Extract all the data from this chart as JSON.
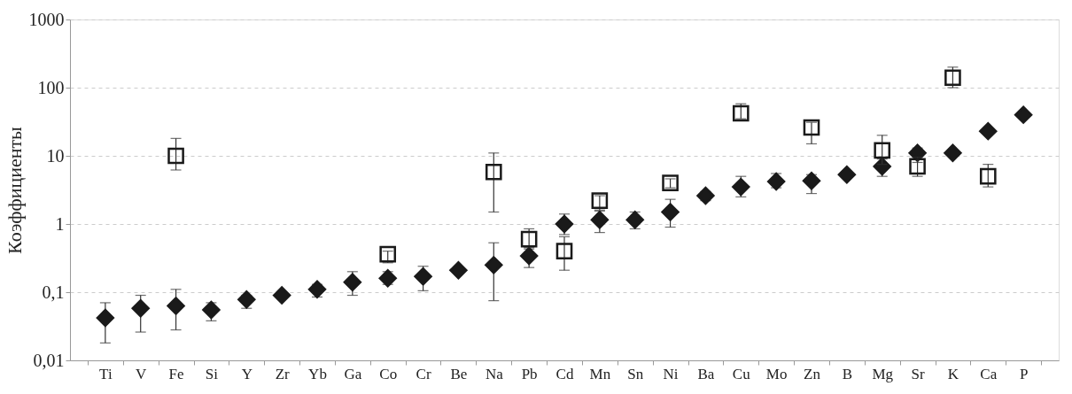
{
  "chart_data": {
    "type": "scatter",
    "ylabel": "Коэффициенты",
    "log": true,
    "grid": "y",
    "categories": [
      "Ti",
      "V",
      "Fe",
      "Si",
      "Y",
      "Zr",
      "Yb",
      "Ga",
      "Co",
      "Cr",
      "Be",
      "Na",
      "Pb",
      "Cd",
      "Mn",
      "Sn",
      "Ni",
      "Ba",
      "Cu",
      "Mo",
      "Zn",
      "B",
      "Mg",
      "Sr",
      "K",
      "Ca",
      "P"
    ],
    "ylim": [
      0.01,
      1000
    ],
    "yticks": [
      {
        "value": 0.01,
        "label": "0,01"
      },
      {
        "value": 0.1,
        "label": "0,1"
      },
      1,
      10,
      100,
      1000
    ],
    "series": [
      {
        "color": "#1a1a1a",
        "marker": "diamond",
        "values": [
          0.042,
          0.058,
          0.063,
          0.055,
          0.078,
          0.09,
          0.11,
          0.14,
          0.16,
          0.17,
          0.21,
          0.25,
          0.34,
          1.0,
          1.15,
          1.15,
          1.5,
          2.6,
          3.5,
          4.2,
          4.3,
          5.3,
          7,
          11,
          11,
          23,
          40
        ],
        "errors": [
          [
            0.018,
            0.07
          ],
          [
            0.026,
            0.09
          ],
          [
            0.028,
            0.11
          ],
          [
            0.038,
            0.07
          ],
          [
            0.058,
            0.09
          ],
          null,
          [
            0.085,
            0.13
          ],
          [
            0.09,
            0.2
          ],
          [
            0.13,
            0.2
          ],
          [
            0.105,
            0.24
          ],
          null,
          [
            0.075,
            0.53
          ],
          [
            0.23,
            0.43
          ],
          [
            0.7,
            1.4
          ],
          [
            0.75,
            1.55
          ],
          [
            0.85,
            1.5
          ],
          [
            0.9,
            2.3
          ],
          [
            2.2,
            3.0
          ],
          [
            2.5,
            5
          ],
          [
            3.4,
            5.5
          ],
          [
            2.8,
            5.3
          ],
          null,
          [
            5,
            9
          ],
          [
            8,
            13
          ],
          null,
          null,
          null
        ]
      },
      {
        "color": "#1a1a1a",
        "marker": "square",
        "values": [
          null,
          null,
          10,
          null,
          null,
          null,
          null,
          null,
          0.36,
          null,
          null,
          5.8,
          0.6,
          0.4,
          2.2,
          null,
          4,
          null,
          42,
          null,
          26,
          null,
          12,
          7,
          140,
          5,
          null
        ],
        "errors": [
          null,
          null,
          [
            6.2,
            18
          ],
          null,
          null,
          null,
          null,
          null,
          [
            0.27,
            0.4
          ],
          null,
          null,
          [
            1.5,
            11
          ],
          [
            0.45,
            0.85
          ],
          [
            0.21,
            0.65
          ],
          [
            1.6,
            2.6
          ],
          null,
          [
            3.4,
            4.6
          ],
          null,
          [
            35,
            58
          ],
          null,
          [
            15,
            31
          ],
          null,
          [
            7.5,
            20
          ],
          [
            5,
            9.5
          ],
          [
            100,
            200
          ],
          [
            3.5,
            7.5
          ],
          null
        ]
      }
    ]
  }
}
